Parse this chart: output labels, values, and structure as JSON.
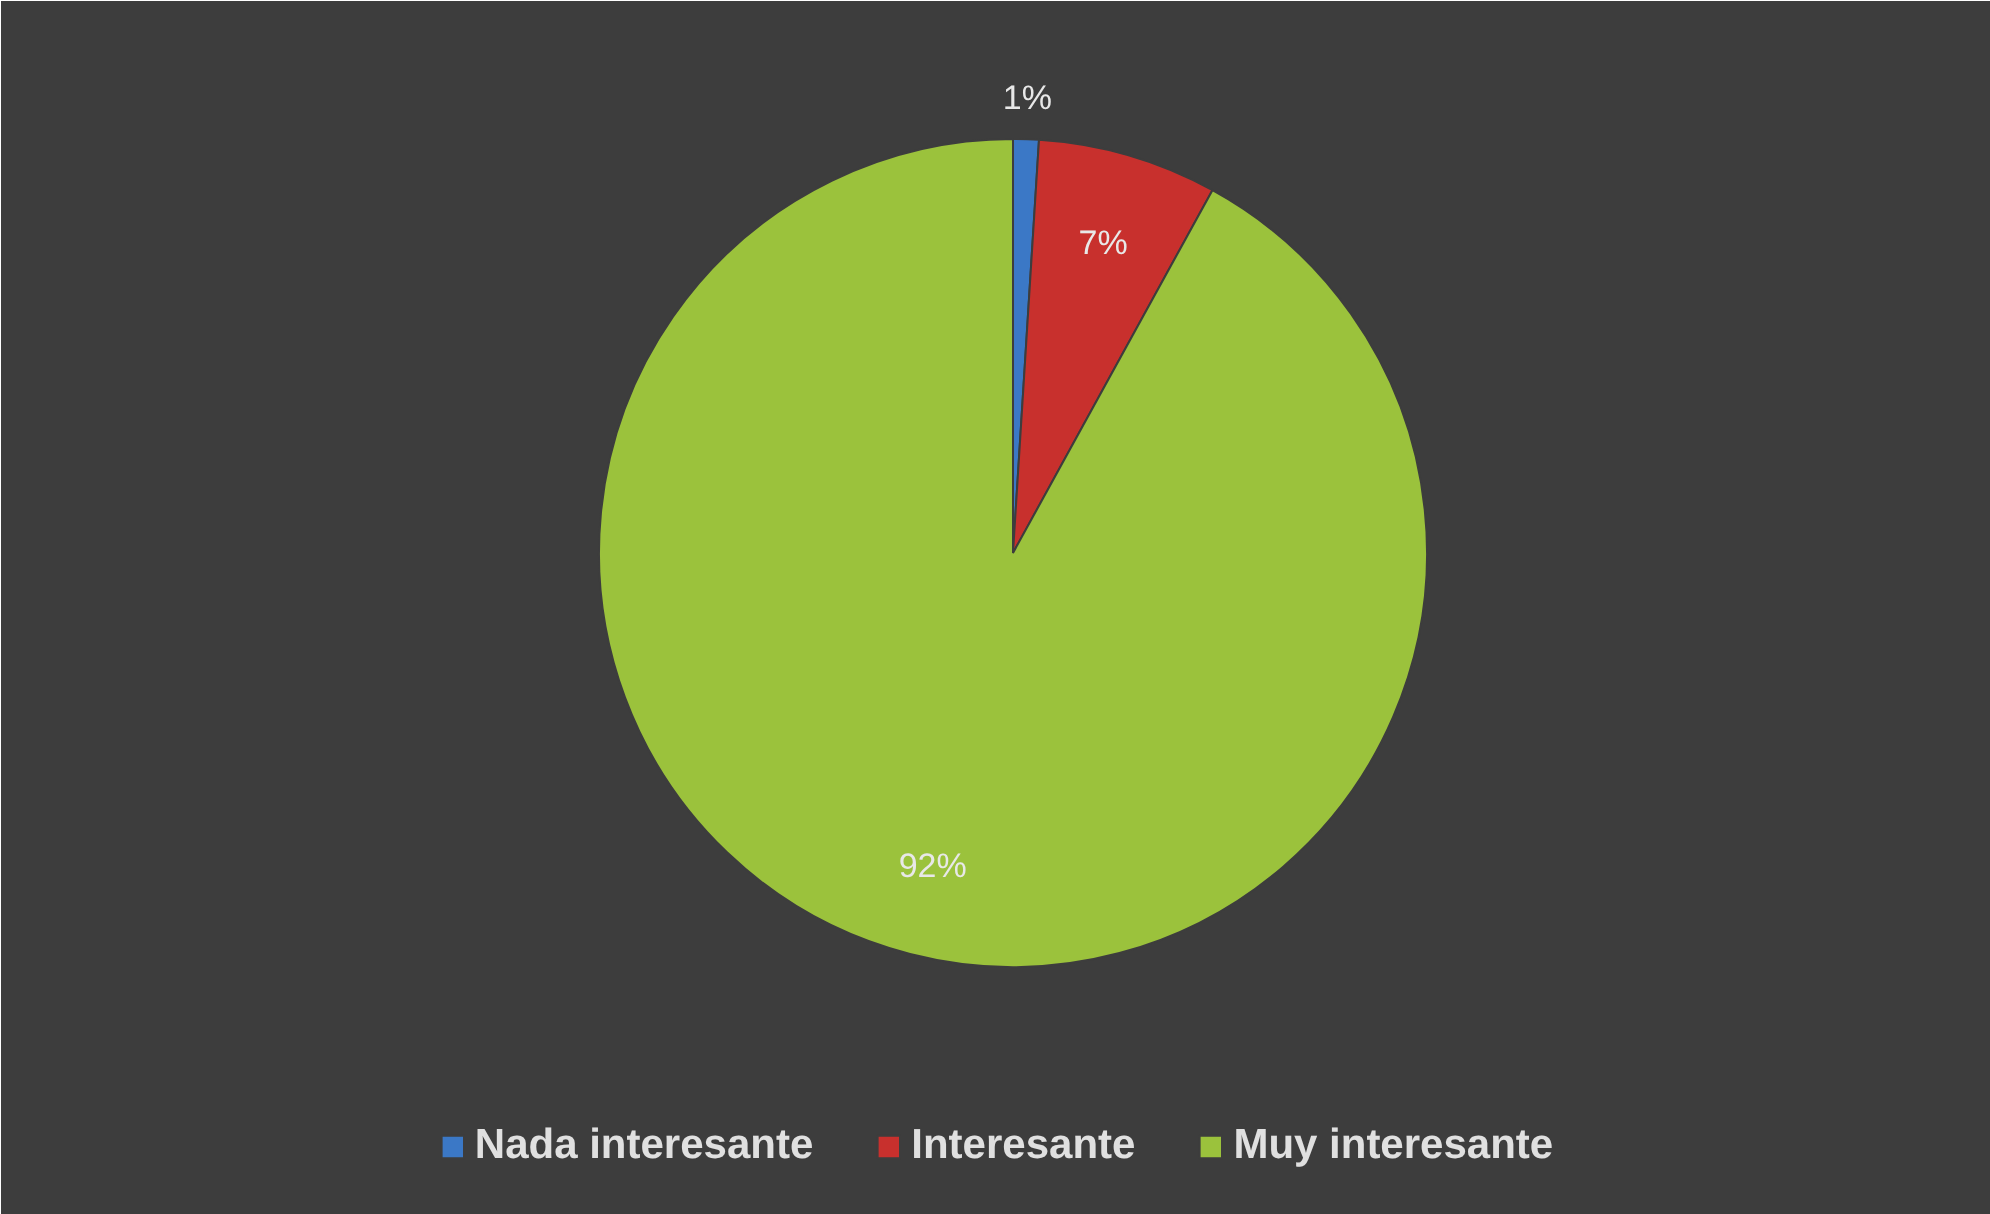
{
  "chart_data": {
    "type": "pie",
    "categories": [
      "Nada interesante",
      "Interesante",
      "Muy interesante"
    ],
    "values": [
      1,
      7,
      92
    ],
    "colors": [
      "#3b78c6",
      "#c8302d",
      "#9bc23c"
    ],
    "value_labels": [
      "1%",
      "7%",
      "92%"
    ],
    "legend": "bottom"
  }
}
